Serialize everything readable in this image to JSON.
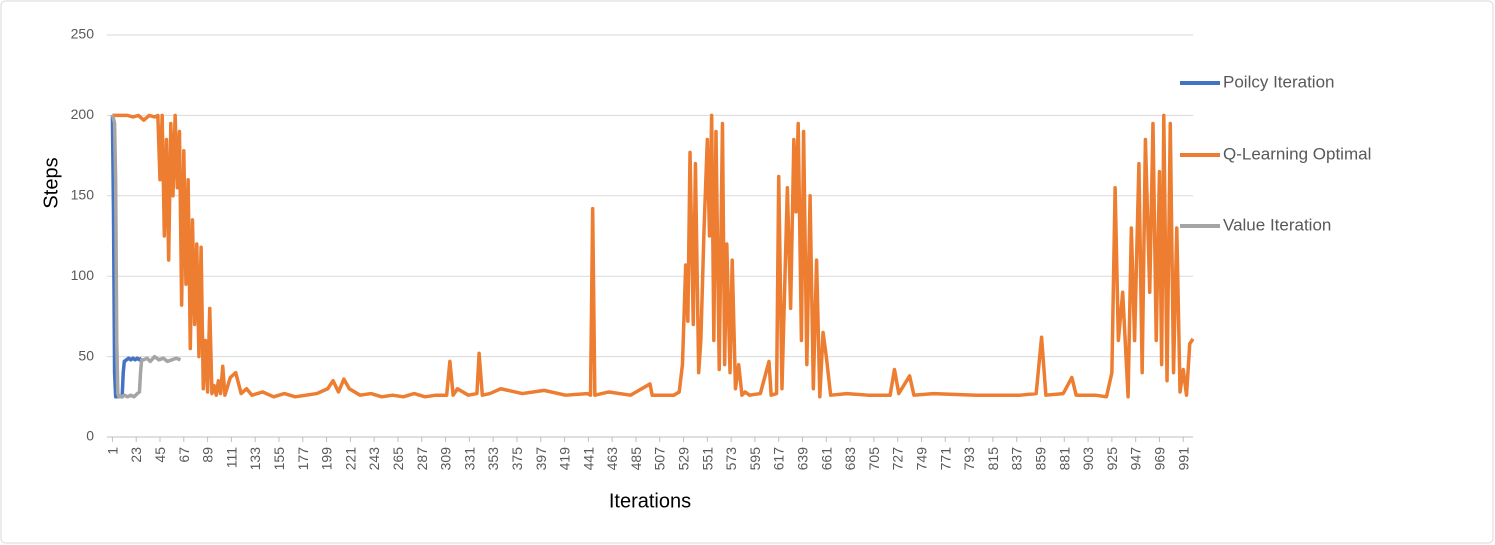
{
  "chart_data": {
    "type": "line",
    "x_label": "Iterations",
    "y_label": "Steps",
    "xlim": [
      -4,
      1000
    ],
    "xticks": [
      1,
      23,
      45,
      67,
      89,
      111,
      133,
      155,
      177,
      199,
      221,
      243,
      265,
      287,
      309,
      331,
      353,
      375,
      397,
      419,
      441,
      463,
      485,
      507,
      529,
      551,
      573,
      595,
      617,
      639,
      661,
      683,
      705,
      727,
      749,
      771,
      793,
      815,
      837,
      859,
      881,
      903,
      925,
      947,
      969,
      991
    ],
    "ylim": [
      0,
      250
    ],
    "yticks": [
      0,
      50,
      100,
      150,
      200,
      250
    ],
    "grid": true,
    "legend": "right",
    "series": [
      {
        "name": "Poilcy Iteration",
        "color": "#4472c4",
        "x": [
          1,
          2,
          3,
          4,
          6,
          8,
          10,
          11,
          12,
          14,
          16,
          18,
          20,
          22,
          24,
          26,
          28
        ],
        "values": [
          200,
          140,
          40,
          25,
          25,
          25,
          25,
          40,
          47,
          48,
          49,
          48,
          49,
          48,
          49,
          48,
          49
        ]
      },
      {
        "name": "Q-Learning Optimal",
        "color": "#ed7d31",
        "x": [
          1,
          5,
          10,
          15,
          20,
          25,
          30,
          35,
          40,
          43,
          45,
          47,
          49,
          51,
          53,
          55,
          57,
          59,
          61,
          63,
          65,
          67,
          69,
          71,
          73,
          75,
          77,
          79,
          81,
          83,
          85,
          87,
          89,
          91,
          93,
          95,
          97,
          99,
          101,
          103,
          105,
          110,
          115,
          120,
          125,
          130,
          140,
          150,
          160,
          170,
          180,
          190,
          200,
          205,
          210,
          215,
          220,
          230,
          240,
          250,
          260,
          270,
          280,
          290,
          300,
          310,
          313,
          316,
          320,
          330,
          338,
          340,
          343,
          350,
          360,
          380,
          400,
          420,
          440,
          443,
          445,
          447,
          460,
          480,
          498,
          500,
          520,
          525,
          528,
          531,
          533,
          535,
          538,
          540,
          543,
          545,
          548,
          551,
          553,
          555,
          557,
          559,
          562,
          565,
          567,
          569,
          572,
          574,
          577,
          580,
          583,
          586,
          590,
          600,
          608,
          610,
          615,
          617,
          620,
          625,
          628,
          631,
          633,
          635,
          638,
          640,
          643,
          646,
          649,
          652,
          655,
          658,
          661,
          665,
          680,
          700,
          720,
          724,
          728,
          738,
          742,
          760,
          800,
          840,
          855,
          860,
          864,
          880,
          888,
          892,
          910,
          920,
          925,
          928,
          931,
          935,
          940,
          943,
          946,
          950,
          953,
          956,
          960,
          963,
          966,
          969,
          971,
          973,
          976,
          979,
          982,
          985,
          988,
          991,
          994,
          997,
          1000
        ],
        "values": [
          200,
          200,
          200,
          200,
          199,
          200,
          197,
          200,
          199,
          200,
          160,
          200,
          125,
          185,
          110,
          195,
          150,
          200,
          155,
          190,
          82,
          178,
          95,
          160,
          55,
          135,
          70,
          120,
          50,
          118,
          30,
          60,
          28,
          80,
          27,
          32,
          26,
          35,
          27,
          44,
          26,
          37,
          40,
          27,
          30,
          26,
          28,
          25,
          27,
          25,
          26,
          27,
          30,
          35,
          28,
          36,
          30,
          26,
          27,
          25,
          26,
          25,
          27,
          25,
          26,
          26,
          47,
          26,
          30,
          26,
          27,
          52,
          26,
          27,
          30,
          27,
          29,
          26,
          27,
          26,
          142,
          26,
          28,
          26,
          33,
          26,
          26,
          28,
          45,
          107,
          72,
          177,
          70,
          170,
          40,
          60,
          130,
          185,
          125,
          200,
          60,
          190,
          42,
          195,
          45,
          120,
          40,
          110,
          30,
          45,
          26,
          28,
          26,
          27,
          47,
          26,
          27,
          162,
          30,
          155,
          80,
          185,
          140,
          195,
          60,
          190,
          45,
          150,
          30,
          110,
          25,
          65,
          50,
          26,
          27,
          26,
          26,
          42,
          27,
          38,
          26,
          27,
          26,
          26,
          27,
          62,
          26,
          27,
          37,
          26,
          26,
          25,
          40,
          155,
          60,
          90,
          25,
          130,
          60,
          170,
          40,
          185,
          90,
          195,
          60,
          165,
          45,
          200,
          35,
          195,
          40,
          130,
          28,
          42,
          26,
          58,
          61
        ]
      },
      {
        "name": "Value Iteration",
        "color": "#a5a5a5",
        "x": [
          1,
          2,
          3,
          4,
          5,
          6,
          7,
          9,
          12,
          15,
          18,
          21,
          24,
          26,
          27,
          28,
          30,
          33,
          36,
          40,
          44,
          48,
          52,
          56,
          60,
          64
        ],
        "values": [
          200,
          198,
          195,
          160,
          60,
          27,
          25,
          25,
          26,
          25,
          26,
          25,
          27,
          28,
          40,
          48,
          48,
          49,
          47,
          50,
          48,
          49,
          47,
          48,
          49,
          48
        ]
      }
    ]
  }
}
